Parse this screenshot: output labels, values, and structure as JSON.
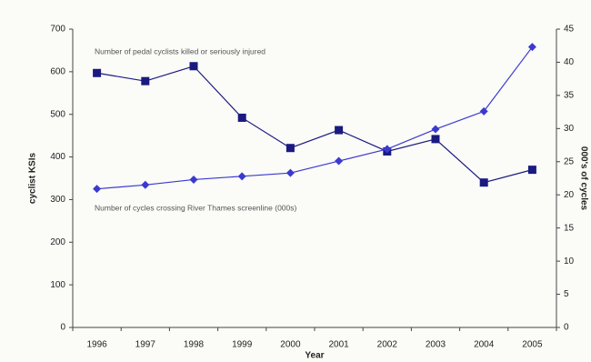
{
  "chart_data": {
    "type": "line",
    "categories": [
      "1996",
      "1997",
      "1998",
      "1999",
      "2000",
      "2001",
      "2002",
      "2003",
      "2004",
      "2005"
    ],
    "series": [
      {
        "name": "Number of pedal cyclists killed or seriously injured",
        "color": "#1a1a80",
        "marker": "square",
        "values": [
          597,
          578,
          613,
          492,
          421,
          463,
          413,
          442,
          340,
          370
        ]
      },
      {
        "name": "Number of cycles crossing River Thames screenline (000s)",
        "color": "#3a3ad0",
        "marker": "diamond",
        "axis": "y2",
        "values": [
          20.9,
          21.5,
          22.3,
          22.8,
          23.3,
          25.1,
          26.9,
          29.9,
          32.6,
          42.3
        ]
      }
    ],
    "ylabel": "cyclist KSIs",
    "y2label": "000's of cycles",
    "xlabel": "Year",
    "ylim": [
      0,
      700
    ],
    "yticks": [
      0,
      100,
      200,
      300,
      400,
      500,
      600,
      700
    ],
    "y2lim": [
      0,
      45
    ],
    "y2ticks": [
      0,
      5,
      10,
      15,
      20,
      25,
      30,
      35,
      40,
      45
    ],
    "grid": false
  }
}
